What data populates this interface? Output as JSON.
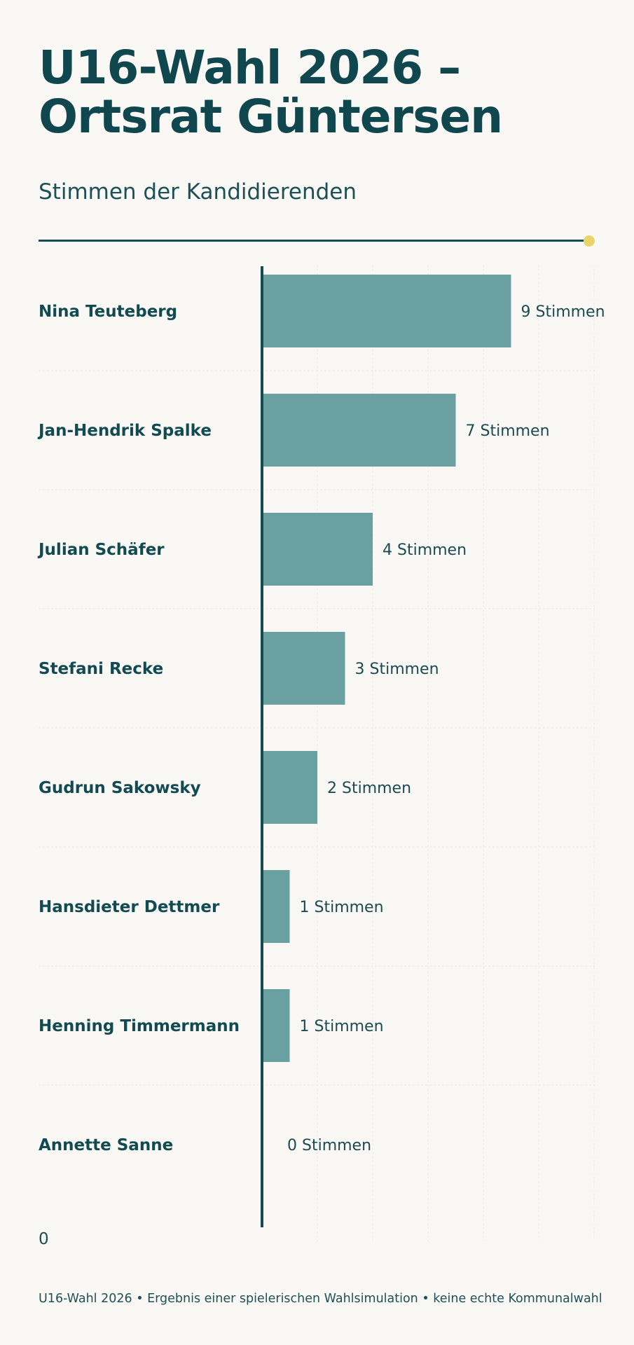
{
  "title_line1": "U16-Wahl 2026 –",
  "title_line2": "Ortsrat Güntersen",
  "subtitle": "Stimmen der Kandidierenden",
  "footer": "U16-Wahl 2026 • Ergebnis einer spielerischen Wahlsimulation • keine echte Kommunalwahl",
  "colors": {
    "background": "#f9f8f5",
    "text": "#10474f",
    "bar": "#6aa0a0",
    "axis": "#174b53",
    "accent_dot": "#e8d56a"
  },
  "chart_data": {
    "type": "bar",
    "orientation": "horizontal",
    "categories": [
      "Nina Teuteberg",
      "Jan-Hendrik Spalke",
      "Julian Schäfer",
      "Stefani Recke",
      "Gudrun Sakowsky",
      "Hansdieter Dettmer",
      "Henning Timmermann",
      "Annette Sanne"
    ],
    "values": [
      9,
      7,
      4,
      3,
      2,
      1,
      1,
      0
    ],
    "value_labels": [
      "9 Stimmen",
      "7 Stimmen",
      "4 Stimmen",
      "3 Stimmen",
      "2 Stimmen",
      "1 Stimmen",
      "1 Stimmen",
      "0 Stimmen"
    ],
    "x_tick_label": "0",
    "xlim": [
      0,
      12
    ],
    "grid": true
  }
}
